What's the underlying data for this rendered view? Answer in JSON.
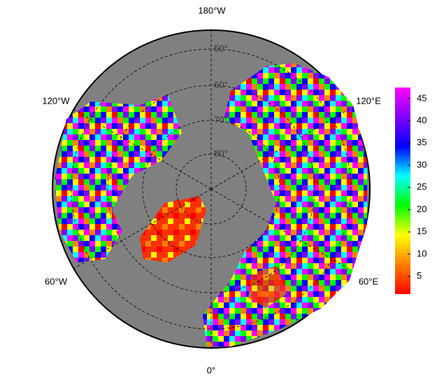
{
  "map": {
    "lon_labels": [
      "180°W",
      "120°W",
      "120°E",
      "60°W",
      "60°E",
      "0°"
    ],
    "lat_labels": [
      "50°",
      "60°",
      "70°",
      "80°"
    ],
    "colorbar": {
      "lim": [
        1,
        47.5
      ],
      "ticks": [
        5,
        10,
        15,
        20,
        25,
        30,
        35,
        40,
        45
      ],
      "colors": [
        "#ff0000",
        "#ff8000",
        "#ffff00",
        "#00ff00",
        "#00ffff",
        "#0000ff",
        "#8000ff",
        "#ff00ff"
      ]
    }
  }
}
